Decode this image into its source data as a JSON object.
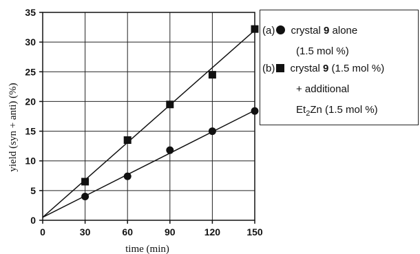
{
  "chart_data": {
    "type": "scatter",
    "xlabel": "time (min)",
    "ylabel": "yield (syn + anti)  (%)",
    "xlim": [
      0,
      150
    ],
    "ylim": [
      0,
      35
    ],
    "xticks": [
      "0",
      "30",
      "60",
      "90",
      "120",
      "150"
    ],
    "yticks": [
      "0",
      "5",
      "10",
      "15",
      "20",
      "25",
      "30",
      "35"
    ],
    "grid": true,
    "legend_position": "right",
    "series": [
      {
        "key": "a",
        "marker": "circle",
        "x": [
          30,
          60,
          90,
          120,
          150
        ],
        "y": [
          4.0,
          7.4,
          11.8,
          15.0,
          18.4
        ],
        "fit_line": [
          [
            0,
            0.5
          ],
          [
            150,
            18.5
          ]
        ]
      },
      {
        "key": "b",
        "marker": "square",
        "x": [
          30,
          60,
          90,
          120,
          150
        ],
        "y": [
          6.5,
          13.5,
          19.5,
          24.5,
          32.2
        ],
        "fit_line": [
          [
            0,
            0.5
          ],
          [
            150,
            32.0
          ]
        ]
      }
    ],
    "legend": {
      "a": {
        "tag": "(a)",
        "text1": "crystal ",
        "compound": "9",
        "text2": " alone",
        "line2": "(1.5 mol %)"
      },
      "b": {
        "tag": "(b)",
        "text1": "crystal ",
        "compound": "9",
        "text2": " (1.5 mol %)",
        "line2": "+ additional",
        "line3_pre": "Et",
        "line3_sub": "2",
        "line3_post": "Zn (1.5 mol %)"
      }
    }
  }
}
